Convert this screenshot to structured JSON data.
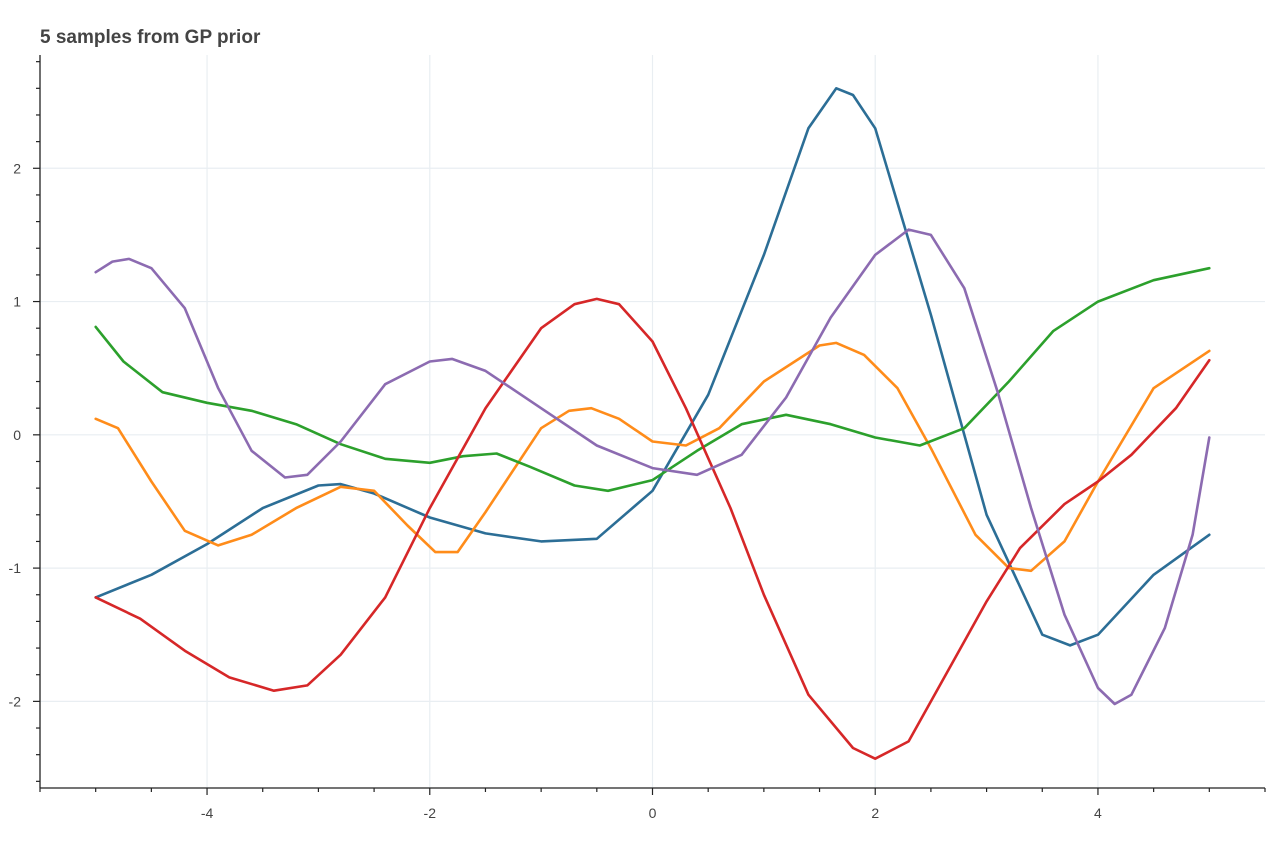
{
  "chart_data": {
    "type": "line",
    "title": "5 samples from GP prior",
    "xlabel": "",
    "ylabel": "",
    "xlim": [
      -5.5,
      5.5
    ],
    "ylim": [
      -2.65,
      2.85
    ],
    "xticks": [
      -4,
      -2,
      0,
      2,
      4
    ],
    "yticks": [
      -2,
      -1,
      0,
      1,
      2
    ],
    "grid": true,
    "series": [
      {
        "color": "#2c6e96",
        "points": [
          [
            -5,
            -1.22
          ],
          [
            -4.5,
            -1.05
          ],
          [
            -4,
            -0.82
          ],
          [
            -3.5,
            -0.55
          ],
          [
            -3,
            -0.38
          ],
          [
            -2.8,
            -0.37
          ],
          [
            -2.5,
            -0.44
          ],
          [
            -2,
            -0.62
          ],
          [
            -1.5,
            -0.74
          ],
          [
            -1,
            -0.8
          ],
          [
            -0.5,
            -0.78
          ],
          [
            0,
            -0.42
          ],
          [
            0.5,
            0.3
          ],
          [
            1,
            1.35
          ],
          [
            1.4,
            2.3
          ],
          [
            1.65,
            2.6
          ],
          [
            1.8,
            2.55
          ],
          [
            2,
            2.3
          ],
          [
            2.5,
            0.9
          ],
          [
            3,
            -0.6
          ],
          [
            3.5,
            -1.5
          ],
          [
            3.75,
            -1.58
          ],
          [
            4,
            -1.5
          ],
          [
            4.5,
            -1.05
          ],
          [
            5,
            -0.75
          ]
        ]
      },
      {
        "color": "#ff8c1a",
        "points": [
          [
            -5,
            0.12
          ],
          [
            -4.8,
            0.05
          ],
          [
            -4.5,
            -0.35
          ],
          [
            -4.2,
            -0.72
          ],
          [
            -3.9,
            -0.83
          ],
          [
            -3.6,
            -0.75
          ],
          [
            -3.2,
            -0.55
          ],
          [
            -2.8,
            -0.39
          ],
          [
            -2.5,
            -0.42
          ],
          [
            -2.2,
            -0.68
          ],
          [
            -1.95,
            -0.88
          ],
          [
            -1.75,
            -0.88
          ],
          [
            -1.5,
            -0.58
          ],
          [
            -1,
            0.05
          ],
          [
            -0.75,
            0.18
          ],
          [
            -0.55,
            0.2
          ],
          [
            -0.3,
            0.12
          ],
          [
            0,
            -0.05
          ],
          [
            0.3,
            -0.08
          ],
          [
            0.6,
            0.05
          ],
          [
            1,
            0.4
          ],
          [
            1.5,
            0.67
          ],
          [
            1.65,
            0.69
          ],
          [
            1.9,
            0.6
          ],
          [
            2.2,
            0.35
          ],
          [
            2.5,
            -0.1
          ],
          [
            2.9,
            -0.75
          ],
          [
            3.2,
            -1.0
          ],
          [
            3.4,
            -1.02
          ],
          [
            3.7,
            -0.8
          ],
          [
            4,
            -0.35
          ],
          [
            4.5,
            0.35
          ],
          [
            5,
            0.63
          ]
        ]
      },
      {
        "color": "#2ca02c",
        "points": [
          [
            -5,
            0.81
          ],
          [
            -4.75,
            0.55
          ],
          [
            -4.4,
            0.32
          ],
          [
            -4,
            0.24
          ],
          [
            -3.6,
            0.18
          ],
          [
            -3.2,
            0.08
          ],
          [
            -2.8,
            -0.07
          ],
          [
            -2.4,
            -0.18
          ],
          [
            -2,
            -0.21
          ],
          [
            -1.7,
            -0.16
          ],
          [
            -1.4,
            -0.14
          ],
          [
            -1.1,
            -0.24
          ],
          [
            -0.7,
            -0.38
          ],
          [
            -0.4,
            -0.42
          ],
          [
            0,
            -0.34
          ],
          [
            0.4,
            -0.12
          ],
          [
            0.8,
            0.08
          ],
          [
            1.2,
            0.15
          ],
          [
            1.6,
            0.08
          ],
          [
            2,
            -0.02
          ],
          [
            2.4,
            -0.08
          ],
          [
            2.8,
            0.05
          ],
          [
            3.2,
            0.4
          ],
          [
            3.6,
            0.78
          ],
          [
            4,
            1.0
          ],
          [
            4.5,
            1.16
          ],
          [
            5,
            1.25
          ]
        ]
      },
      {
        "color": "#d62728",
        "points": [
          [
            -5,
            -1.22
          ],
          [
            -4.6,
            -1.38
          ],
          [
            -4.2,
            -1.62
          ],
          [
            -3.8,
            -1.82
          ],
          [
            -3.4,
            -1.92
          ],
          [
            -3.1,
            -1.88
          ],
          [
            -2.8,
            -1.65
          ],
          [
            -2.4,
            -1.22
          ],
          [
            -2,
            -0.55
          ],
          [
            -1.5,
            0.2
          ],
          [
            -1,
            0.8
          ],
          [
            -0.7,
            0.98
          ],
          [
            -0.5,
            1.02
          ],
          [
            -0.3,
            0.98
          ],
          [
            0,
            0.7
          ],
          [
            0.3,
            0.2
          ],
          [
            0.7,
            -0.55
          ],
          [
            1,
            -1.2
          ],
          [
            1.4,
            -1.95
          ],
          [
            1.8,
            -2.35
          ],
          [
            2,
            -2.43
          ],
          [
            2.3,
            -2.3
          ],
          [
            2.7,
            -1.7
          ],
          [
            3,
            -1.25
          ],
          [
            3.3,
            -0.85
          ],
          [
            3.7,
            -0.52
          ],
          [
            4,
            -0.35
          ],
          [
            4.3,
            -0.15
          ],
          [
            4.7,
            0.2
          ],
          [
            5,
            0.56
          ]
        ]
      },
      {
        "color": "#8c6bb1",
        "points": [
          [
            -5,
            1.22
          ],
          [
            -4.85,
            1.3
          ],
          [
            -4.7,
            1.32
          ],
          [
            -4.5,
            1.25
          ],
          [
            -4.2,
            0.95
          ],
          [
            -3.9,
            0.35
          ],
          [
            -3.6,
            -0.12
          ],
          [
            -3.3,
            -0.32
          ],
          [
            -3.1,
            -0.3
          ],
          [
            -2.8,
            -0.05
          ],
          [
            -2.4,
            0.38
          ],
          [
            -2,
            0.55
          ],
          [
            -1.8,
            0.57
          ],
          [
            -1.5,
            0.48
          ],
          [
            -1,
            0.2
          ],
          [
            -0.5,
            -0.08
          ],
          [
            0,
            -0.25
          ],
          [
            0.4,
            -0.3
          ],
          [
            0.8,
            -0.15
          ],
          [
            1.2,
            0.28
          ],
          [
            1.6,
            0.88
          ],
          [
            2,
            1.35
          ],
          [
            2.3,
            1.54
          ],
          [
            2.5,
            1.5
          ],
          [
            2.8,
            1.1
          ],
          [
            3.1,
            0.32
          ],
          [
            3.4,
            -0.55
          ],
          [
            3.7,
            -1.35
          ],
          [
            4,
            -1.9
          ],
          [
            4.15,
            -2.02
          ],
          [
            4.3,
            -1.95
          ],
          [
            4.6,
            -1.45
          ],
          [
            4.85,
            -0.75
          ],
          [
            5,
            -0.02
          ]
        ]
      }
    ]
  }
}
